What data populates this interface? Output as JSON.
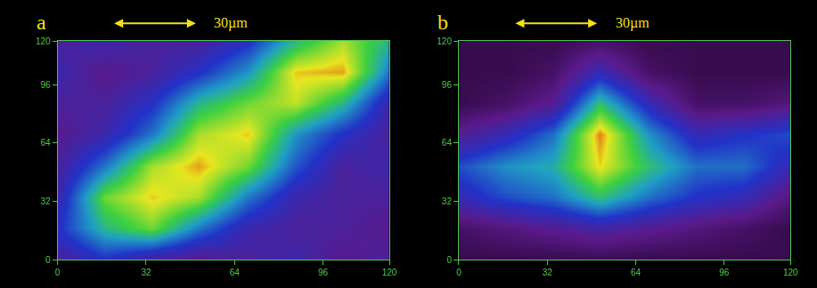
{
  "chart_data": [
    {
      "type": "heatmap",
      "label": "a",
      "scale_label": "30µm",
      "scale_length": 30,
      "x": [
        0,
        17,
        34,
        51,
        69,
        86,
        103,
        120
      ],
      "y": [
        0,
        17,
        34,
        51,
        69,
        86,
        103,
        120
      ],
      "z": [
        [
          1,
          1.5,
          1,
          0.8,
          1,
          1.2,
          0.8,
          1
        ],
        [
          1.5,
          2.5,
          3,
          2,
          1.2,
          1,
          1,
          0.8
        ],
        [
          1.2,
          3,
          3.5,
          3.2,
          2,
          1.2,
          1,
          1
        ],
        [
          1,
          2,
          3.2,
          3.6,
          3,
          1.8,
          1,
          1.2
        ],
        [
          0.8,
          1.2,
          2,
          3.2,
          3.5,
          2.2,
          1.5,
          1
        ],
        [
          1,
          1,
          1.5,
          2.5,
          3,
          3.3,
          2.5,
          1.2
        ],
        [
          1.2,
          0.8,
          1,
          1.5,
          2.2,
          3.5,
          3.6,
          2
        ],
        [
          1,
          1.2,
          1,
          1,
          1.5,
          2.5,
          3.2,
          2.5
        ]
      ],
      "zlim": [
        0,
        3.9
      ],
      "xlim": [
        0,
        120
      ],
      "xticks": [
        0,
        32,
        64,
        96,
        120
      ],
      "ylim": [
        0,
        120
      ],
      "yticks": [
        0,
        32,
        64,
        96,
        120
      ],
      "grid": false
    },
    {
      "type": "heatmap",
      "label": "b",
      "scale_label": "30µm",
      "scale_length": 30,
      "x": [
        0,
        17,
        34,
        51,
        69,
        86,
        103,
        120
      ],
      "y": [
        0,
        17,
        34,
        51,
        69,
        86,
        103,
        120
      ],
      "z": [
        [
          0.5,
          0.5,
          0.5,
          0.6,
          0.5,
          0.5,
          0.5,
          0.5
        ],
        [
          1,
          1.5,
          2,
          2.5,
          2,
          1.5,
          1,
          0.5
        ],
        [
          3,
          4,
          4.5,
          6,
          4.5,
          3.5,
          3,
          1.5
        ],
        [
          4,
          5,
          5.5,
          8,
          6,
          4.5,
          4.5,
          3
        ],
        [
          2,
          3,
          4.5,
          8.5,
          5,
          3,
          3.5,
          4
        ],
        [
          0.5,
          1,
          2,
          6,
          3,
          1,
          1,
          1.5
        ],
        [
          0.5,
          0.5,
          1,
          3,
          1,
          0.5,
          0.5,
          0.5
        ],
        [
          0.5,
          0.5,
          0.5,
          1,
          0.5,
          0.5,
          0.5,
          0.5
        ]
      ],
      "zlim": [
        0,
        9
      ],
      "xlim": [
        0,
        120
      ],
      "xticks": [
        0,
        32,
        64,
        96,
        120
      ],
      "ylim": [
        0,
        120
      ],
      "yticks": [
        0,
        32,
        64,
        96,
        120
      ],
      "grid": false
    }
  ]
}
